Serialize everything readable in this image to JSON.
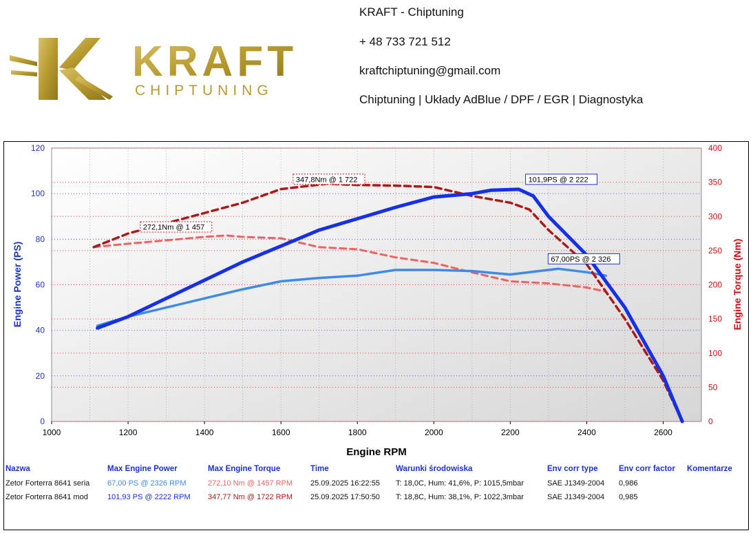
{
  "header": {
    "logo_text": "KRAFT",
    "logo_subtext": "CHIPTUNING",
    "company": "KRAFT - Chiptuning",
    "phone": "+ 48 733 721 512",
    "email": "kraftchiptuning@gmail.com",
    "services": "Chiptuning | Układy AdBlue / DPF / EGR | Diagnostyka"
  },
  "colors": {
    "mod_power": "#1530e8",
    "stock_power": "#3d8be8",
    "mod_torque": "#b01818",
    "stock_torque": "#ef6262",
    "left_axis": "#1a33cc",
    "right_axis": "#d01010"
  },
  "chart_data": {
    "type": "line",
    "xlabel": "Engine RPM",
    "ylabel_left": "Engine Power (PS)",
    "ylabel_right": "Engine Torque (Nm)",
    "xlim": [
      1000,
      2700
    ],
    "ylim_left": [
      0,
      120
    ],
    "ylim_right": [
      0,
      400
    ],
    "x_ticks": [
      1000,
      1200,
      1400,
      1600,
      1800,
      2000,
      2200,
      2400,
      2600
    ],
    "y_ticks_left": [
      0,
      20,
      40,
      60,
      80,
      100,
      120
    ],
    "y_ticks_right": [
      0,
      50,
      100,
      150,
      200,
      250,
      300,
      350,
      400
    ],
    "series": [
      {
        "name": "Zetor Forterra 8641 mod - Power",
        "axis": "left",
        "key": "mod_power",
        "x": [
          1120,
          1200,
          1300,
          1400,
          1500,
          1600,
          1700,
          1800,
          1900,
          2000,
          2100,
          2150,
          2222,
          2260,
          2300,
          2400,
          2500,
          2600,
          2650
        ],
        "y": [
          41,
          46,
          54,
          62,
          70,
          77,
          84,
          89,
          94,
          98.5,
          100,
          101.5,
          101.9,
          99,
          90,
          73,
          50,
          20,
          0
        ]
      },
      {
        "name": "Zetor Forterra 8641 seria - Power",
        "axis": "left",
        "key": "stock_power",
        "x": [
          1120,
          1200,
          1300,
          1400,
          1500,
          1600,
          1700,
          1800,
          1900,
          2000,
          2100,
          2200,
          2326,
          2400,
          2450
        ],
        "y": [
          42,
          46,
          50,
          54,
          58,
          61.5,
          63,
          64,
          66.5,
          66.5,
          66,
          64.5,
          67,
          65.5,
          64
        ]
      },
      {
        "name": "Zetor Forterra 8641 mod - Torque",
        "axis": "right",
        "key": "mod_torque",
        "x": [
          1110,
          1200,
          1300,
          1400,
          1500,
          1600,
          1722,
          1800,
          1900,
          2000,
          2100,
          2200,
          2250,
          2300,
          2400,
          2500,
          2600,
          2650
        ],
        "y": [
          255,
          275,
          290,
          305,
          320,
          340,
          347.8,
          346,
          345,
          343,
          330,
          320,
          310,
          280,
          230,
          150,
          60,
          0
        ]
      },
      {
        "name": "Zetor Forterra 8641 seria - Torque",
        "axis": "right",
        "key": "stock_torque",
        "x": [
          1110,
          1200,
          1300,
          1400,
          1457,
          1500,
          1600,
          1700,
          1800,
          1900,
          2000,
          2100,
          2200,
          2300,
          2400,
          2450
        ],
        "y": [
          255,
          260,
          265,
          270,
          272.1,
          270,
          268,
          255,
          252,
          240,
          232,
          218,
          205,
          202,
          196,
          190
        ]
      }
    ],
    "annotations": [
      {
        "text": "347,8Nm @ 1 722",
        "x": 1722,
        "y": 347.8,
        "axis": "right",
        "key": "mod_torque"
      },
      {
        "text": "272,1Nm @ 1 457",
        "x": 1457,
        "y": 272.1,
        "axis": "right",
        "key": "stock_torque"
      },
      {
        "text": "101,9PS @ 2 222",
        "x": 2222,
        "y": 101.9,
        "axis": "left",
        "key": "mod_power"
      },
      {
        "text": "67,00PS @ 2 326",
        "x": 2326,
        "y": 67.0,
        "axis": "left",
        "key": "stock_power"
      }
    ]
  },
  "table": {
    "headers": [
      "Nazwa",
      "Max Engine Power",
      "Max Engine Torque",
      "Time",
      "Warunki środowiska",
      "Env corr type",
      "Env corr factor",
      "Komentarze"
    ],
    "rows": [
      {
        "name": "Zetor Forterra 8641 seria",
        "power": "67,00 PS @ 2326 RPM",
        "torque": "272,10 Nm @ 1457 RPM",
        "time": "25.09.2025 16:22:55",
        "env": "T: 18,0C, Hum: 41,6%, P: 1015,5mbar",
        "corr_type": "SAE J1349-2004",
        "corr_factor": "0,986"
      },
      {
        "name": "Zetor Forterra 8641 mod",
        "power": "101,93 PS @ 2222 RPM",
        "torque": "347,77 Nm @ 1722 RPM",
        "time": "25.09.2025 17:50:50",
        "env": "T: 18,8C, Hum: 38,1%, P: 1022,3mbar",
        "corr_type": "SAE J1349-2004",
        "corr_factor": "0,985"
      }
    ]
  }
}
